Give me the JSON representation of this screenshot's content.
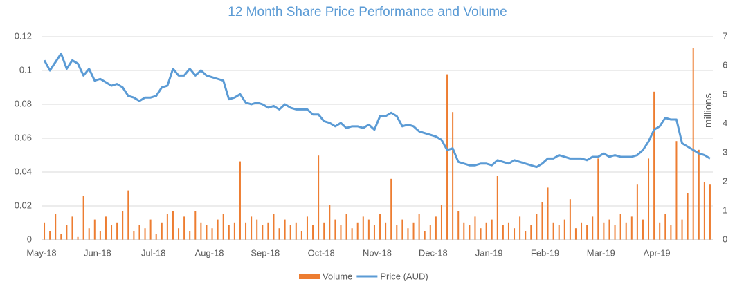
{
  "chart_data": {
    "type": "bar_line",
    "title": "12 Month Share Price Performance and Volume",
    "y2label": "millions",
    "categories": [
      "May-18",
      null,
      null,
      null,
      null,
      null,
      null,
      null,
      null,
      null,
      "Jun-18",
      null,
      null,
      null,
      null,
      null,
      null,
      null,
      null,
      null,
      "Jul-18",
      null,
      null,
      null,
      null,
      null,
      null,
      null,
      null,
      null,
      "Aug-18",
      null,
      null,
      null,
      null,
      null,
      null,
      null,
      null,
      null,
      "Sep-18",
      null,
      null,
      null,
      null,
      null,
      null,
      null,
      null,
      null,
      "Oct-18",
      null,
      null,
      null,
      null,
      null,
      null,
      null,
      null,
      null,
      "Nov-18",
      null,
      null,
      null,
      null,
      null,
      null,
      null,
      null,
      null,
      "Dec-18",
      null,
      null,
      null,
      null,
      null,
      null,
      null,
      null,
      null,
      "Jan-19",
      null,
      null,
      null,
      null,
      null,
      null,
      null,
      null,
      null,
      "Feb-19",
      null,
      null,
      null,
      null,
      null,
      null,
      null,
      null,
      null,
      "Mar-19",
      null,
      null,
      null,
      null,
      null,
      null,
      null,
      null,
      null,
      "Apr-19",
      null,
      null,
      null,
      null,
      null,
      null,
      null,
      null,
      null
    ],
    "series": [
      {
        "name": "Volume",
        "color": "#ed7d31",
        "axis": "y2",
        "kind": "bar",
        "values": [
          0.6,
          0.3,
          0.9,
          0.2,
          0.5,
          0.8,
          0.1,
          1.5,
          0.4,
          0.7,
          0.3,
          0.8,
          0.5,
          0.6,
          1.0,
          1.7,
          0.3,
          0.5,
          0.4,
          0.7,
          0.2,
          0.6,
          0.9,
          1.0,
          0.4,
          0.8,
          0.3,
          1.0,
          0.6,
          0.5,
          0.4,
          0.7,
          0.9,
          0.5,
          0.6,
          2.7,
          0.6,
          0.8,
          0.7,
          0.5,
          0.6,
          0.9,
          0.4,
          0.7,
          0.5,
          0.6,
          0.3,
          0.8,
          0.5,
          2.9,
          0.6,
          1.2,
          0.7,
          0.5,
          0.9,
          0.4,
          0.6,
          0.8,
          0.7,
          0.5,
          0.9,
          0.6,
          2.1,
          0.5,
          0.7,
          0.4,
          0.6,
          0.9,
          0.3,
          0.5,
          0.8,
          1.2,
          5.7,
          4.4,
          1.0,
          0.6,
          0.5,
          0.8,
          0.4,
          0.6,
          0.7,
          2.2,
          0.5,
          0.6,
          0.4,
          0.8,
          0.3,
          0.5,
          0.9,
          1.3,
          1.8,
          0.6,
          0.5,
          0.7,
          1.4,
          0.4,
          0.6,
          0.5,
          0.8,
          2.8,
          0.6,
          0.7,
          0.5,
          0.9,
          0.6,
          0.8,
          1.9,
          0.7,
          2.8,
          5.1,
          0.6,
          0.9,
          0.5,
          3.4,
          0.7,
          1.6,
          6.6,
          3.1,
          2.0,
          1.9
        ]
      },
      {
        "name": "Price (AUD)",
        "color": "#5b9bd5",
        "axis": "y",
        "kind": "line",
        "values": [
          0.106,
          0.1,
          0.105,
          0.11,
          0.101,
          0.106,
          0.104,
          0.097,
          0.101,
          0.094,
          0.095,
          0.093,
          0.091,
          0.092,
          0.09,
          0.085,
          0.084,
          0.082,
          0.084,
          0.084,
          0.085,
          0.09,
          0.091,
          0.101,
          0.097,
          0.097,
          0.101,
          0.097,
          0.1,
          0.097,
          0.096,
          0.095,
          0.094,
          0.083,
          0.084,
          0.086,
          0.081,
          0.08,
          0.081,
          0.08,
          0.078,
          0.079,
          0.077,
          0.08,
          0.078,
          0.077,
          0.077,
          0.077,
          0.074,
          0.074,
          0.07,
          0.069,
          0.067,
          0.069,
          0.066,
          0.067,
          0.067,
          0.066,
          0.068,
          0.065,
          0.073,
          0.073,
          0.075,
          0.073,
          0.067,
          0.068,
          0.067,
          0.064,
          0.063,
          0.062,
          0.061,
          0.059,
          0.053,
          0.054,
          0.046,
          0.045,
          0.044,
          0.044,
          0.045,
          0.045,
          0.044,
          0.047,
          0.046,
          0.045,
          0.047,
          0.046,
          0.045,
          0.044,
          0.043,
          0.045,
          0.048,
          0.048,
          0.05,
          0.049,
          0.048,
          0.048,
          0.048,
          0.047,
          0.049,
          0.049,
          0.051,
          0.049,
          0.05,
          0.049,
          0.049,
          0.049,
          0.05,
          0.053,
          0.058,
          0.065,
          0.067,
          0.072,
          0.071,
          0.071,
          0.057,
          0.055,
          0.053,
          0.051,
          0.05,
          0.048
        ]
      }
    ],
    "ylim": [
      0,
      0.12
    ],
    "yticks": [
      0,
      0.02,
      0.04,
      0.06,
      0.08,
      0.1,
      0.12
    ],
    "y2lim": [
      0,
      7
    ],
    "y2ticks": [
      0,
      1,
      2,
      3,
      4,
      5,
      6,
      7
    ],
    "grid": true,
    "legend": "bottom"
  }
}
